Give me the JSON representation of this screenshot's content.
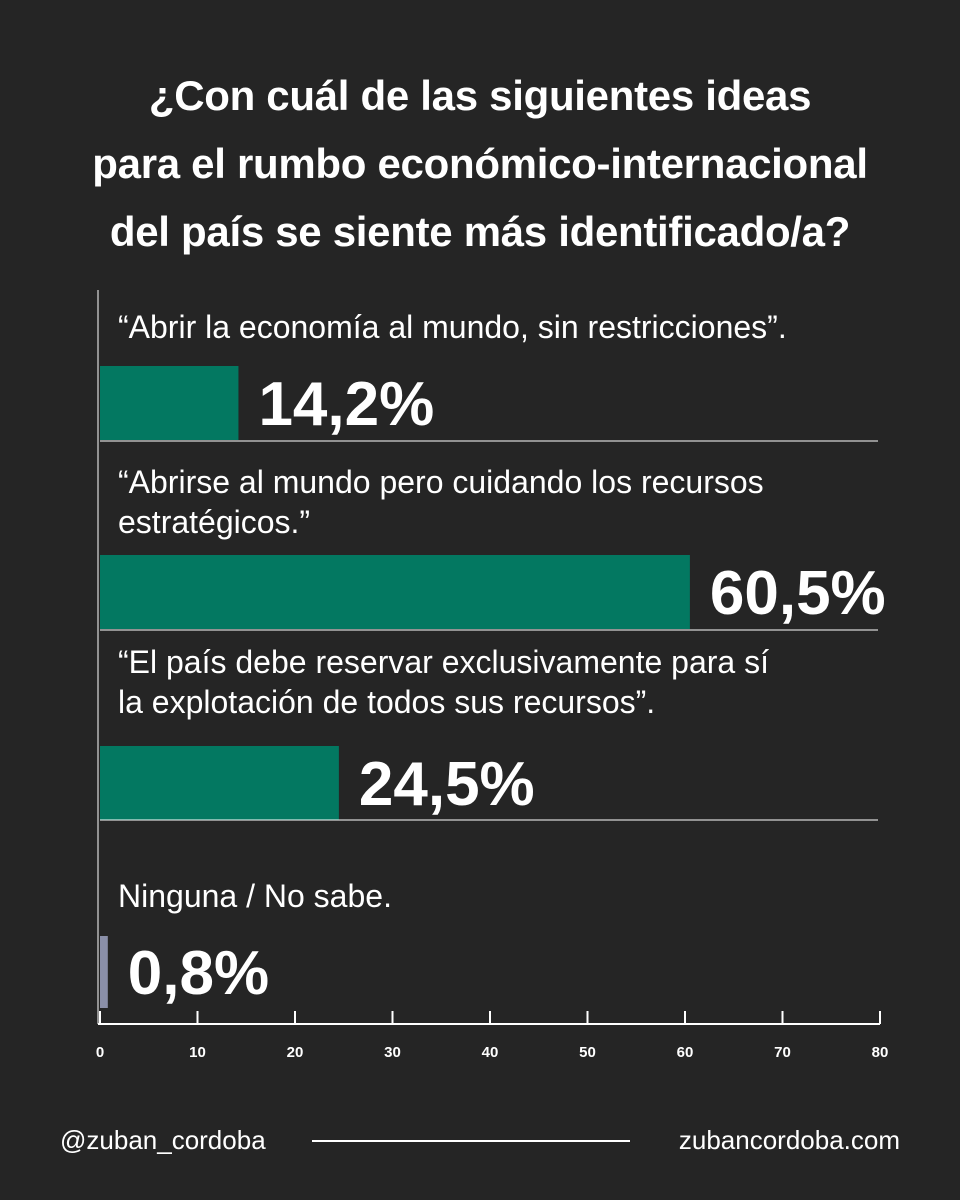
{
  "title_lines": [
    "¿Con cuál de las siguientes ideas",
    "para el rumbo económico-internacional",
    "del país se siente más identificado/a?"
  ],
  "chart_data": {
    "type": "bar",
    "orientation": "horizontal",
    "title": "¿Con cuál de las siguientes ideas para el rumbo económico-internacional del país se siente más identificado/a?",
    "categories": [
      [
        "“Abrir la economía al mundo, sin restricciones”."
      ],
      [
        "“Abrirse al mundo pero cuidando los recursos",
        "estratégicos.”"
      ],
      [
        "“El país debe reservar exclusivamente para sí",
        "la explotación de todos sus recursos”."
      ],
      [
        "Ninguna / No sabe."
      ]
    ],
    "values": [
      14.2,
      60.5,
      24.5,
      0.8
    ],
    "value_labels": [
      "14,2%",
      "60,5%",
      "24,5%",
      "0,8%"
    ],
    "x_ticks": [
      "0",
      "10",
      "20",
      "30",
      "40",
      "50",
      "60",
      "70",
      "80"
    ],
    "xlim": [
      0,
      80
    ],
    "bar_colors": [
      "#037861",
      "#037861",
      "#037861",
      "#8a8fa8"
    ],
    "grid": false,
    "legend": "none"
  },
  "footer": {
    "handle": "@zuban_cordoba",
    "website": "zubancordoba.com"
  },
  "colors": {
    "background": "#252525",
    "bar": "#037861",
    "bar_minor": "#8a8fa8",
    "text": "#ffffff"
  }
}
